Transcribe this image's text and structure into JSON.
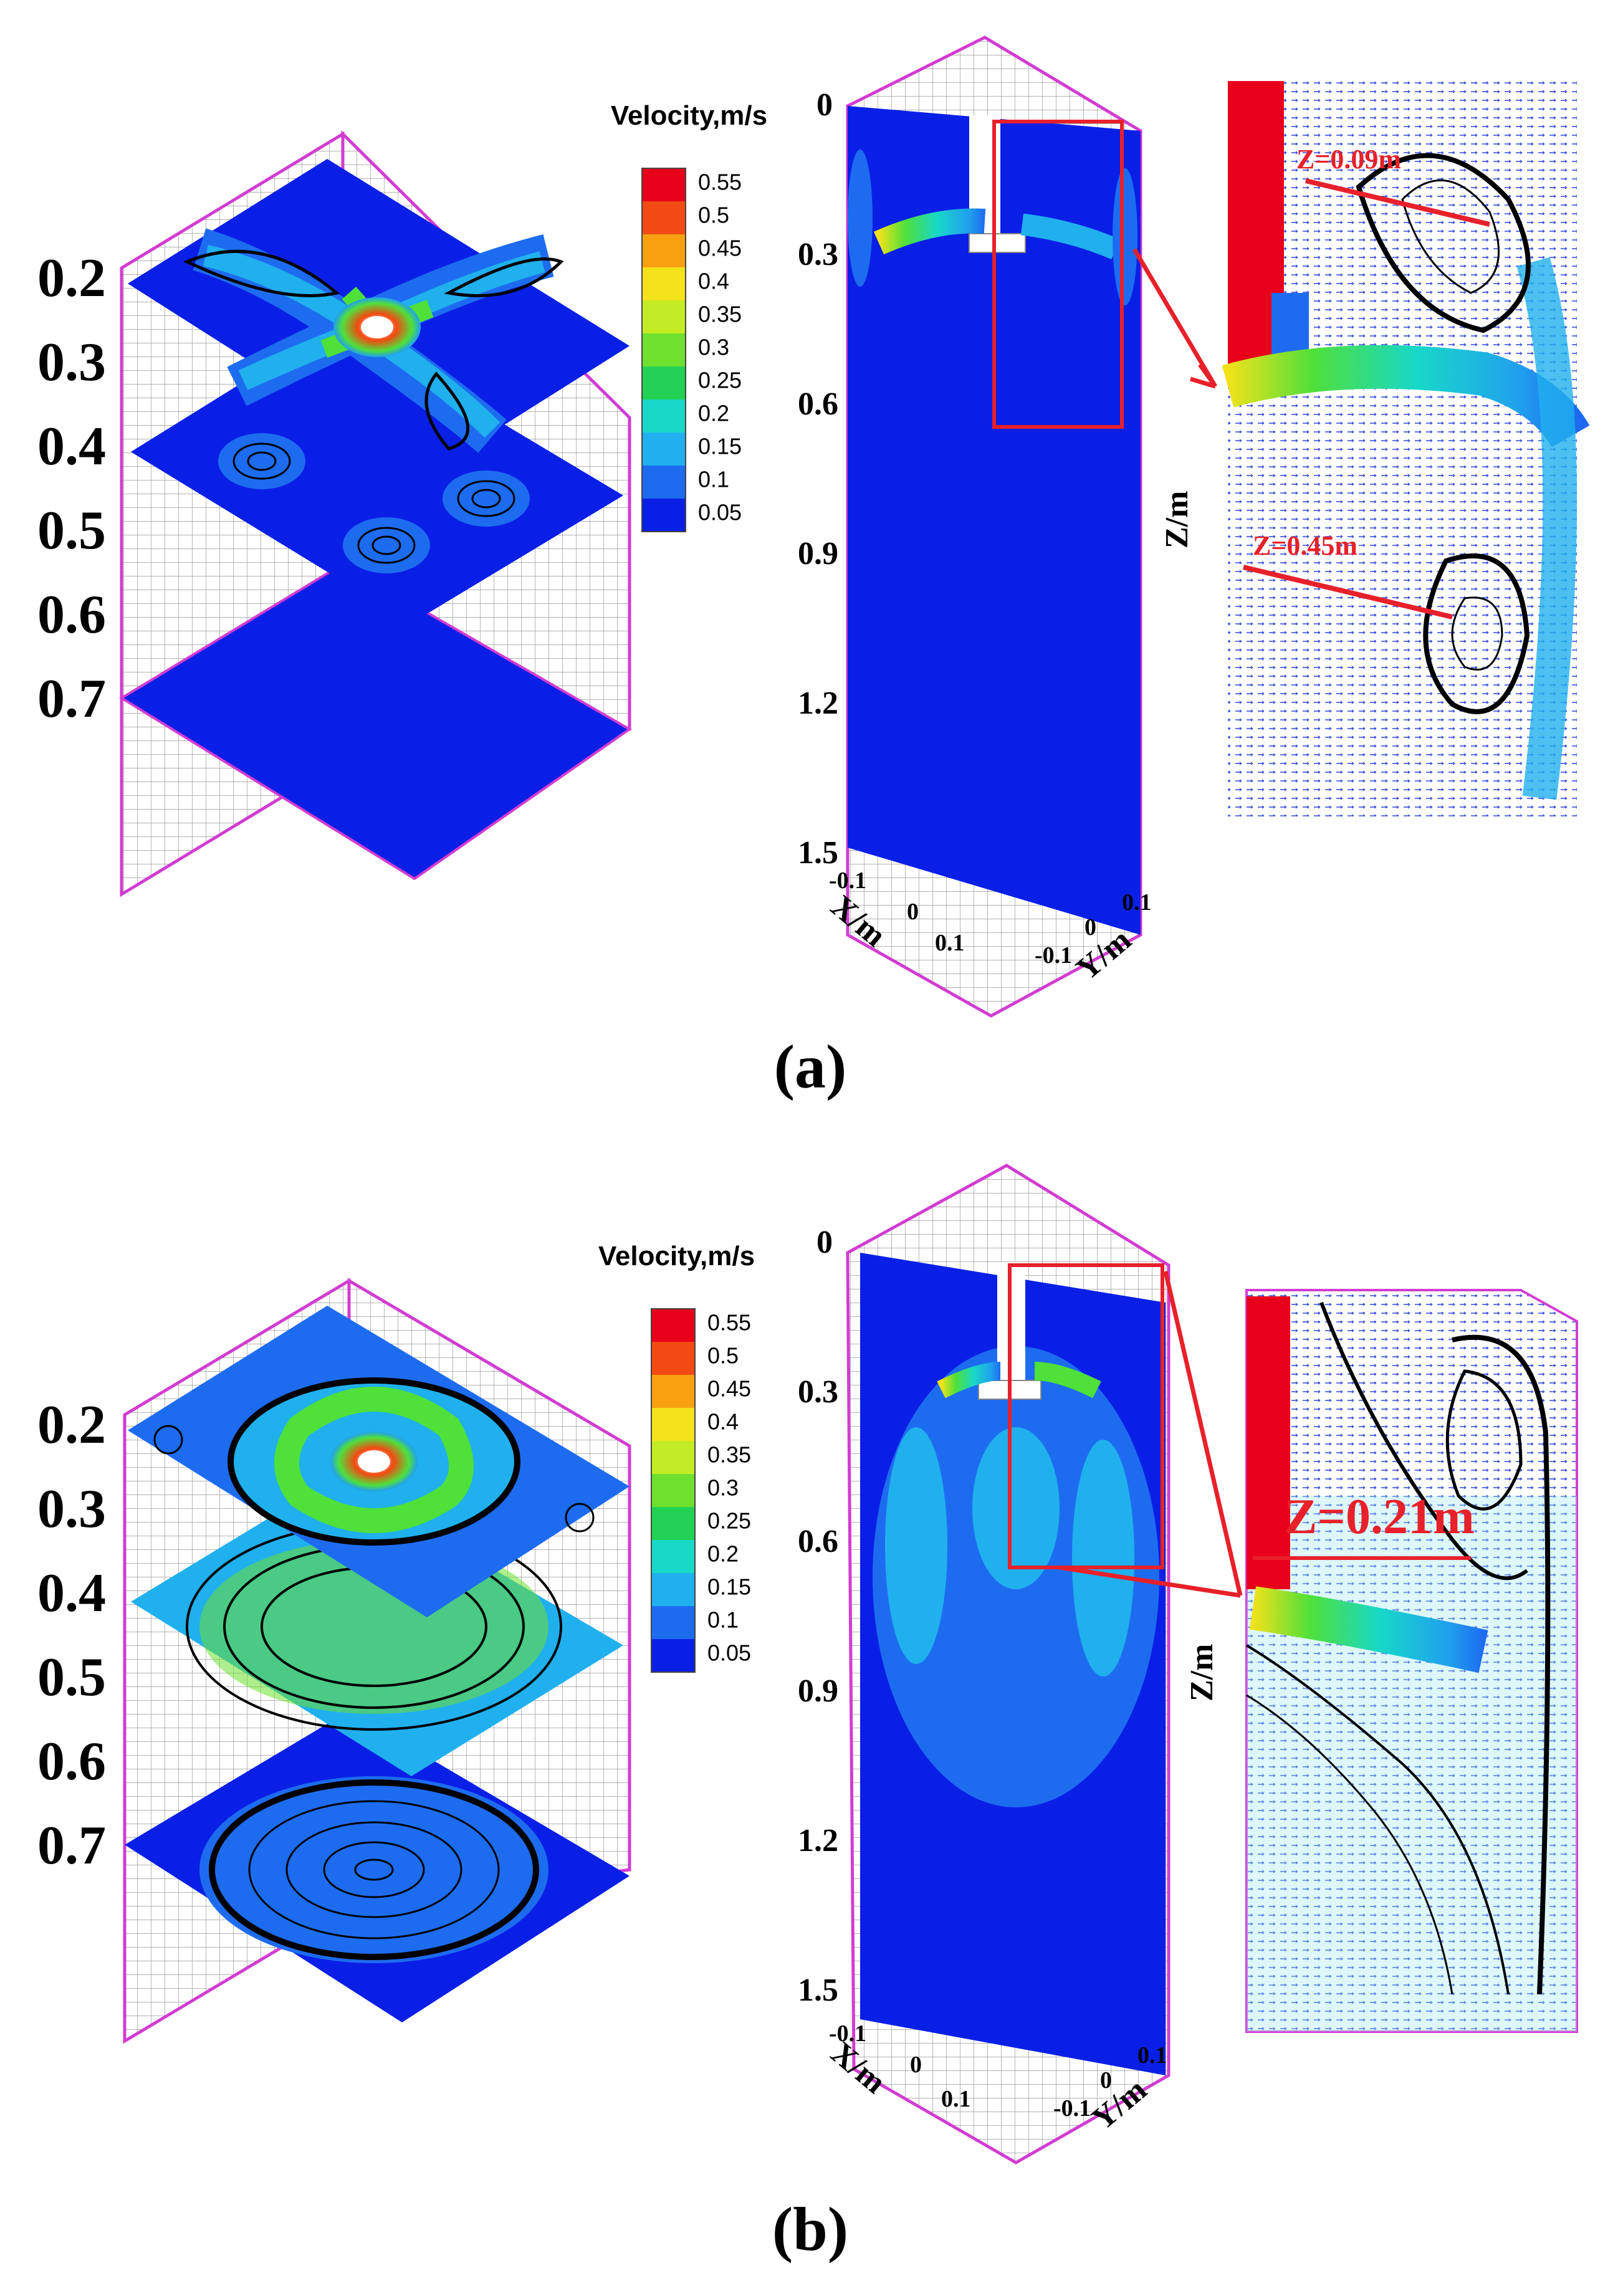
{
  "colorbar": {
    "title": "Velocity,m/s",
    "levels": [
      "0.55",
      "0.5",
      "0.45",
      "0.4",
      "0.35",
      "0.3",
      "0.25",
      "0.2",
      "0.15",
      "0.1",
      "0.05"
    ],
    "colors": [
      "#e8001a",
      "#f24a12",
      "#f8a010",
      "#f4e21a",
      "#c4ec24",
      "#6ee02e",
      "#22d254",
      "#18d8c8",
      "#20b0ee",
      "#1d6cf0",
      "#0a1fe6"
    ]
  },
  "panels": [
    {
      "label": "(a)",
      "slice_levels": [
        "0.2",
        "0.3",
        "0.4",
        "0.5",
        "0.6",
        "0.7"
      ],
      "z_ticks": [
        "0",
        "0.3",
        "0.6",
        "0.9",
        "1.2",
        "1.5"
      ],
      "z_axis_label": "Z/m",
      "x_axis_label": "X/m",
      "y_axis_label": "Y/m",
      "x_ticks": [
        "-0.1",
        "0",
        "0.1"
      ],
      "y_ticks": [
        "-0.1",
        "0",
        "0.1"
      ],
      "annotations": [
        "Z=0.09m",
        "Z=0.45m"
      ]
    },
    {
      "label": "(b)",
      "slice_levels": [
        "0.2",
        "0.3",
        "0.4",
        "0.5",
        "0.6",
        "0.7"
      ],
      "z_ticks": [
        "0",
        "0.3",
        "0.6",
        "0.9",
        "1.2",
        "1.5"
      ],
      "z_axis_label": "Z/m",
      "x_axis_label": "X/m",
      "y_axis_label": "Y/m",
      "x_ticks": [
        "-0.1",
        "0",
        "0.1"
      ],
      "y_ticks": [
        "-0.1",
        "0",
        "0.1"
      ],
      "annotations": [
        "Z=0.21m"
      ]
    }
  ],
  "colors": {
    "frame": "#d23cd2",
    "base_blue": "#0a1fe6",
    "highlight_red": "#e8202a"
  }
}
